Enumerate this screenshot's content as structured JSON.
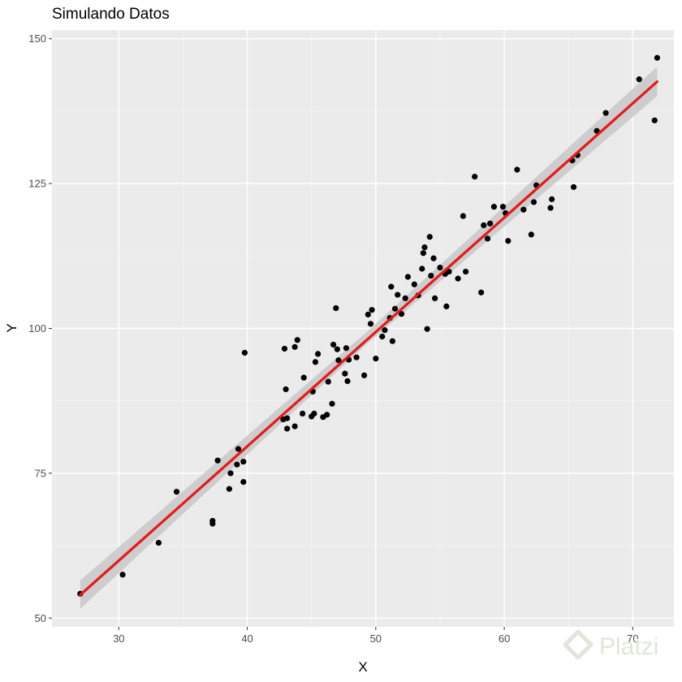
{
  "watermark": "Platzi",
  "colors": {
    "panel_background": "#EBEBEB",
    "grid_major": "#FFFFFF",
    "grid_minor": "#F5F5F5",
    "points": "#000000",
    "fit_line": "#E41A1C",
    "confidence_band": "#C8C8C8",
    "watermark": "#E0E6D8"
  },
  "chart_data": {
    "type": "scatter",
    "title": "Simulando Datos",
    "xlabel": "X",
    "ylabel": "Y",
    "xlim": [
      24.8,
      73.2
    ],
    "ylim": [
      48.5,
      151.5
    ],
    "x_ticks": [
      30,
      40,
      50,
      60,
      70
    ],
    "x_tick_labels": [
      "30",
      "40",
      "50",
      "60",
      "70"
    ],
    "y_ticks": [
      50,
      75,
      100,
      125,
      150
    ],
    "y_tick_labels": [
      "50",
      "75",
      "100",
      "125",
      "150"
    ],
    "grid": true,
    "legend": "none",
    "points": [
      [
        27.0,
        54.2
      ],
      [
        30.3,
        57.5
      ],
      [
        33.1,
        63.0
      ],
      [
        34.5,
        71.8
      ],
      [
        37.3,
        66.8
      ],
      [
        37.3,
        66.3
      ],
      [
        37.7,
        77.2
      ],
      [
        38.6,
        72.3
      ],
      [
        38.7,
        75.0
      ],
      [
        39.2,
        76.5
      ],
      [
        39.3,
        79.2
      ],
      [
        39.7,
        77.0
      ],
      [
        39.7,
        73.5
      ],
      [
        39.8,
        95.8
      ],
      [
        42.8,
        84.3
      ],
      [
        42.9,
        96.5
      ],
      [
        43.0,
        89.5
      ],
      [
        43.1,
        84.5
      ],
      [
        43.1,
        82.7
      ],
      [
        43.7,
        83.1
      ],
      [
        43.7,
        96.8
      ],
      [
        43.9,
        98.0
      ],
      [
        44.3,
        85.3
      ],
      [
        44.4,
        91.5
      ],
      [
        45.0,
        84.8
      ],
      [
        45.1,
        89.1
      ],
      [
        45.2,
        85.3
      ],
      [
        45.3,
        94.2
      ],
      [
        45.5,
        95.6
      ],
      [
        45.9,
        84.7
      ],
      [
        46.2,
        85.1
      ],
      [
        46.3,
        90.8
      ],
      [
        46.6,
        87.0
      ],
      [
        46.7,
        97.2
      ],
      [
        46.9,
        103.5
      ],
      [
        47.0,
        96.4
      ],
      [
        47.1,
        94.5
      ],
      [
        47.6,
        92.2
      ],
      [
        47.7,
        96.6
      ],
      [
        47.8,
        90.9
      ],
      [
        47.9,
        94.6
      ],
      [
        48.5,
        95.0
      ],
      [
        49.1,
        91.9
      ],
      [
        49.4,
        102.4
      ],
      [
        49.6,
        100.8
      ],
      [
        49.7,
        103.2
      ],
      [
        50.0,
        94.8
      ],
      [
        50.5,
        98.6
      ],
      [
        50.7,
        99.7
      ],
      [
        51.1,
        101.8
      ],
      [
        51.2,
        107.2
      ],
      [
        51.3,
        97.8
      ],
      [
        51.5,
        103.4
      ],
      [
        51.7,
        105.8
      ],
      [
        52.0,
        102.5
      ],
      [
        52.3,
        105.2
      ],
      [
        52.5,
        108.9
      ],
      [
        53.0,
        107.6
      ],
      [
        53.3,
        105.7
      ],
      [
        53.6,
        110.3
      ],
      [
        53.7,
        113.0
      ],
      [
        53.8,
        114.0
      ],
      [
        54.0,
        99.9
      ],
      [
        54.2,
        115.8
      ],
      [
        54.3,
        109.1
      ],
      [
        54.5,
        112.1
      ],
      [
        54.6,
        105.2
      ],
      [
        55.0,
        110.5
      ],
      [
        55.4,
        109.4
      ],
      [
        55.5,
        103.8
      ],
      [
        55.7,
        109.8
      ],
      [
        56.4,
        108.6
      ],
      [
        56.8,
        119.4
      ],
      [
        57.0,
        109.8
      ],
      [
        57.7,
        126.2
      ],
      [
        58.2,
        106.2
      ],
      [
        58.4,
        117.8
      ],
      [
        58.7,
        115.5
      ],
      [
        58.9,
        118.1
      ],
      [
        59.2,
        121.0
      ],
      [
        59.9,
        121.0
      ],
      [
        60.1,
        119.9
      ],
      [
        60.3,
        115.1
      ],
      [
        61.0,
        127.4
      ],
      [
        61.5,
        120.5
      ],
      [
        62.1,
        116.2
      ],
      [
        62.3,
        121.8
      ],
      [
        62.5,
        124.7
      ],
      [
        63.6,
        120.8
      ],
      [
        63.7,
        122.3
      ],
      [
        65.3,
        129.0
      ],
      [
        65.4,
        124.4
      ],
      [
        65.7,
        129.9
      ],
      [
        67.2,
        134.1
      ],
      [
        67.9,
        137.2
      ],
      [
        70.5,
        143.0
      ],
      [
        71.7,
        135.9
      ],
      [
        71.9,
        146.7
      ]
    ],
    "fit_line": {
      "x": [
        27.0,
        71.9
      ],
      "y": [
        54.0,
        142.6
      ],
      "band": {
        "x": [
          27.0,
          49.4,
          71.9
        ],
        "lower": [
          51.6,
          97.5,
          140.1
        ],
        "upper": [
          56.5,
          99.6,
          145.2
        ]
      }
    }
  }
}
